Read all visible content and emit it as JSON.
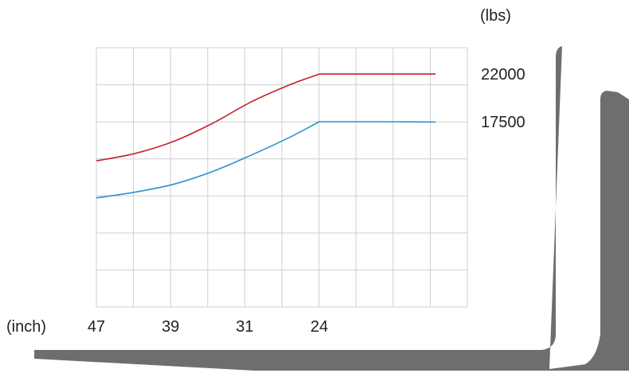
{
  "chart_data": {
    "type": "line",
    "title": "",
    "xlabel": "(inch)",
    "ylabel": "(lbs)",
    "x_tick_labels": [
      "47",
      "39",
      "31",
      "24"
    ],
    "y_tick_labels": [
      "22000",
      "17500"
    ],
    "grid": true,
    "series": [
      {
        "color": "#c8202a",
        "points": [
          [
            47,
            13800
          ],
          [
            43,
            14500
          ],
          [
            39,
            15650
          ],
          [
            35,
            17350
          ],
          [
            31,
            19380
          ],
          [
            27,
            21000
          ],
          [
            24,
            22000
          ],
          [
            20,
            22000
          ],
          [
            16,
            22000
          ],
          [
            12,
            22000
          ]
        ]
      },
      {
        "color": "#2a94c8",
        "points": [
          [
            47,
            10300
          ],
          [
            43,
            10850
          ],
          [
            39,
            11600
          ],
          [
            35,
            12800
          ],
          [
            31,
            14350
          ],
          [
            27,
            16050
          ],
          [
            24,
            17500
          ],
          [
            20,
            17500
          ],
          [
            16,
            17490
          ],
          [
            12,
            17470
          ]
        ]
      }
    ]
  },
  "decor": {
    "fork_color": "#6e6e6e"
  }
}
